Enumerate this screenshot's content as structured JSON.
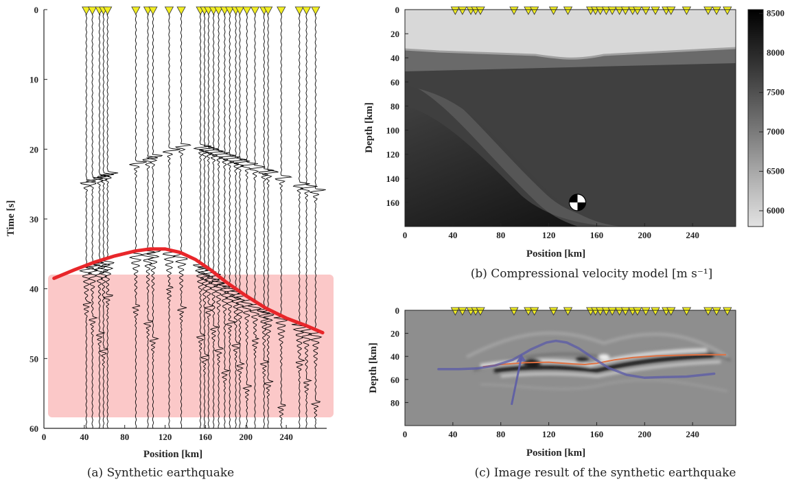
{
  "chart_data": [
    {
      "id": "a",
      "type": "line",
      "caption": "(a) Synthetic earthquake",
      "xlabel": "Position [km]",
      "ylabel": "Time [s]",
      "xlim": [
        0,
        280
      ],
      "ylim": [
        60,
        0
      ],
      "xticks": [
        0,
        40,
        80,
        120,
        160,
        200,
        240
      ],
      "yticks": [
        0,
        10,
        20,
        30,
        40,
        50,
        60
      ],
      "station_color": "#f2ee22",
      "curve_color": "#e8262a",
      "region_color": "#fbc8c8",
      "stations_km": [
        42,
        48,
        55,
        59,
        63,
        91,
        103,
        108,
        124,
        136,
        155,
        159,
        163,
        168,
        173,
        179,
        184,
        190,
        194,
        201,
        209,
        218,
        222,
        235,
        253,
        260,
        269
      ],
      "red_curve": {
        "x": [
          10,
          30,
          50,
          70,
          90,
          105,
          120,
          135,
          150,
          165,
          180,
          200,
          220,
          240,
          260,
          276
        ],
        "y": [
          38.5,
          37.3,
          36.2,
          35.3,
          34.6,
          34.3,
          34.3,
          34.8,
          35.8,
          37.3,
          39.0,
          41.0,
          42.8,
          44.2,
          45.3,
          46.3
        ]
      }
    },
    {
      "id": "b",
      "type": "heatmap",
      "caption": "(b) Compressional velocity model [m s⁻¹]",
      "xlabel": "Position [km]",
      "ylabel": "Depth [km]",
      "xlim": [
        0,
        276
      ],
      "ylim": [
        180,
        0
      ],
      "xticks": [
        0,
        40,
        80,
        120,
        160,
        200,
        240
      ],
      "yticks": [
        0,
        20,
        40,
        60,
        80,
        100,
        120,
        140,
        160
      ],
      "colorbar": {
        "range": [
          5800,
          8550
        ],
        "ticks": [
          6000,
          6500,
          7000,
          7500,
          8000,
          8500
        ]
      },
      "stations_km": [
        42,
        48,
        55,
        59,
        63,
        91,
        103,
        108,
        124,
        136,
        155,
        159,
        163,
        168,
        173,
        179,
        184,
        190,
        194,
        201,
        209,
        218,
        222,
        235,
        253,
        260,
        269
      ],
      "source": {
        "x_km": 144,
        "depth_km": 160
      }
    },
    {
      "id": "c",
      "type": "heatmap",
      "caption": "(c) Image result of the synthetic earthquake",
      "xlabel": "Position [km]",
      "ylabel": "Depth [km]",
      "xlim": [
        0,
        276
      ],
      "ylim": [
        100,
        0
      ],
      "xticks": [
        0,
        40,
        80,
        120,
        160,
        200,
        240
      ],
      "yticks": [
        0,
        20,
        40,
        60,
        80
      ],
      "stations_km": [
        42,
        48,
        55,
        59,
        63,
        91,
        103,
        108,
        124,
        136,
        155,
        159,
        163,
        168,
        173,
        179,
        184,
        190,
        194,
        201,
        209,
        218,
        222,
        235,
        253,
        260,
        269
      ],
      "interface_line": {
        "color": "#e07040",
        "x": [
          65,
          80,
          100,
          120,
          140,
          150,
          160,
          175,
          190,
          210,
          230,
          250,
          268
        ],
        "y": [
          49,
          47,
          45.5,
          45,
          46.5,
          47,
          46,
          43,
          41,
          39.5,
          39,
          38.5,
          38.5
        ]
      },
      "blue_line": {
        "color": "#5a5aa8",
        "x": [
          28,
          45,
          60,
          75,
          90,
          105,
          118,
          126,
          135,
          145,
          158,
          170,
          185,
          200,
          215,
          235,
          258
        ],
        "y": [
          51,
          51,
          50.5,
          48,
          43,
          34,
          28,
          26.5,
          28,
          33,
          42,
          50,
          56,
          58.5,
          58,
          57.5,
          55
        ]
      },
      "arrow": {
        "from": [
          89,
          82
        ],
        "to": [
          97,
          38
        ]
      }
    }
  ]
}
